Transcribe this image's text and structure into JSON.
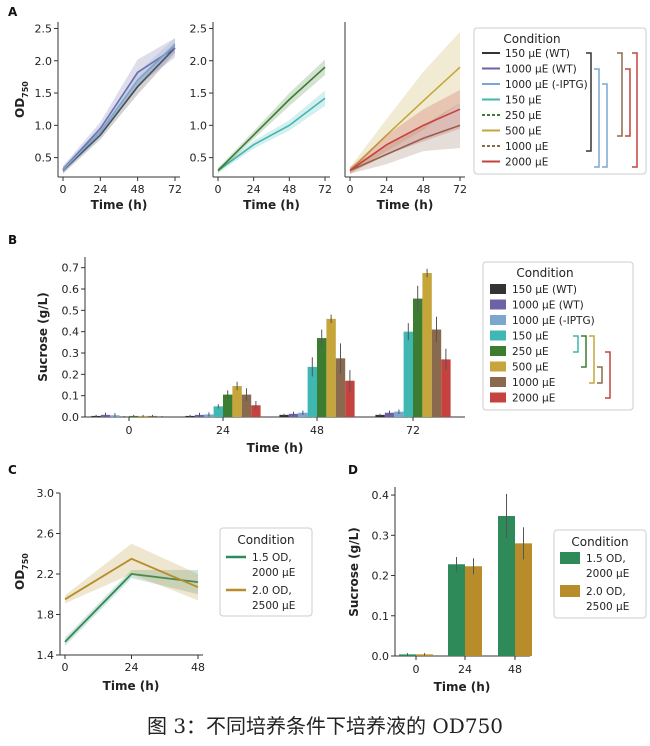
{
  "caption": "图 3：不同培养条件下培养液的 OD750",
  "colors": {
    "150 µE (WT)": "#333333",
    "1000 µE (WT)": "#6b62a8",
    "1000 µE (-IPTG)": "#7aa6cf",
    "150 µE": "#3fb7b2",
    "250 µE": "#3d7d32",
    "500 µE": "#c6a53a",
    "1000 µE": "#8a6a4e",
    "2000 µE": "#c6423f",
    "1.5 OD, 2000 µE": "#2f8a5a",
    "2.0 OD, 2500 µE": "#b88c2a"
  },
  "chart_data": [
    {
      "panel": "A",
      "type": "line",
      "xlabel": "Time (h)",
      "ylabel": "OD750",
      "x": [
        0,
        24,
        48,
        72
      ],
      "xticks": [
        0,
        24,
        48,
        72
      ],
      "yticks": [
        0.5,
        1.0,
        1.5,
        2.0,
        2.5
      ],
      "ylim": [
        0.2,
        2.6
      ],
      "legend": {
        "title": "Condition",
        "entries": [
          "150 µE (WT)",
          "1000 µE (WT)",
          "1000 µE (-IPTG)",
          "150 µE",
          "250 µE",
          "500 µE",
          "1000 µE",
          "2000 µE"
        ],
        "dashed": [
          "250 µE",
          "1000 µE"
        ]
      },
      "subplots": [
        {
          "series": [
            {
              "name": "150 µE (WT)",
              "values": [
                0.3,
                0.85,
                1.6,
                2.2
              ],
              "band": [
                0.05,
                0.07,
                0.12,
                0.08
              ]
            },
            {
              "name": "1000 µE (WT)",
              "values": [
                0.32,
                0.95,
                1.82,
                2.2
              ],
              "band": [
                0.05,
                0.1,
                0.2,
                0.15
              ]
            },
            {
              "name": "1000 µE (-IPTG)",
              "values": [
                0.31,
                0.9,
                1.7,
                2.25
              ],
              "band": [
                0.05,
                0.08,
                0.12,
                0.1
              ]
            }
          ]
        },
        {
          "yticks": [
            0.5,
            1.0,
            1.5,
            2.0,
            2.5
          ],
          "series": [
            {
              "name": "150 µE",
              "values": [
                0.3,
                0.7,
                1.0,
                1.42
              ],
              "band": [
                0.04,
                0.06,
                0.08,
                0.12
              ]
            },
            {
              "name": "250 µE",
              "values": [
                0.3,
                0.85,
                1.4,
                1.9
              ],
              "band": [
                0.04,
                0.06,
                0.1,
                0.12
              ]
            }
          ]
        },
        {
          "series": [
            {
              "name": "500 µE",
              "values": [
                0.3,
                0.85,
                1.38,
                1.9
              ],
              "band": [
                0.05,
                0.25,
                0.45,
                0.55
              ]
            },
            {
              "name": "1000 µE",
              "values": [
                0.3,
                0.55,
                0.8,
                1.0
              ],
              "band": [
                0.05,
                0.15,
                0.2,
                0.35
              ]
            },
            {
              "name": "2000 µE",
              "values": [
                0.3,
                0.7,
                1.0,
                1.25
              ],
              "band": [
                0.05,
                0.15,
                0.25,
                0.3
              ]
            }
          ]
        }
      ]
    },
    {
      "panel": "B",
      "type": "bar",
      "xlabel": "Time (h)",
      "ylabel": "Sucrose (g/L)",
      "categories": [
        "0",
        "24",
        "48",
        "72"
      ],
      "yticks": [
        0.0,
        0.1,
        0.2,
        0.3,
        0.4,
        0.5,
        0.6,
        0.7
      ],
      "ylim": [
        0,
        0.75
      ],
      "legend": {
        "title": "Condition"
      },
      "series": [
        {
          "name": "150 µE (WT)",
          "values": [
            0.005,
            0.005,
            0.01,
            0.01
          ],
          "err": [
            0.005,
            0.005,
            0.005,
            0.005
          ]
        },
        {
          "name": "1000 µE (WT)",
          "values": [
            0.01,
            0.01,
            0.015,
            0.02
          ],
          "err": [
            0.01,
            0.01,
            0.01,
            0.01
          ]
        },
        {
          "name": "1000 µE (-IPTG)",
          "values": [
            0.008,
            0.012,
            0.02,
            0.025
          ],
          "err": [
            0.01,
            0.01,
            0.01,
            0.01
          ]
        },
        {
          "name": "150 µE",
          "values": [
            0.0,
            0.05,
            0.235,
            0.4
          ],
          "err": [
            0.005,
            0.01,
            0.045,
            0.04
          ]
        },
        {
          "name": "250 µE",
          "values": [
            0.005,
            0.105,
            0.37,
            0.555
          ],
          "err": [
            0.005,
            0.02,
            0.04,
            0.06
          ]
        },
        {
          "name": "500 µE",
          "values": [
            0.005,
            0.145,
            0.46,
            0.675
          ],
          "err": [
            0.005,
            0.02,
            0.02,
            0.02
          ]
        },
        {
          "name": "1000 µE",
          "values": [
            0.005,
            0.105,
            0.275,
            0.41
          ],
          "err": [
            0.005,
            0.03,
            0.07,
            0.06
          ]
        },
        {
          "name": "2000 µE",
          "values": [
            0.0,
            0.055,
            0.17,
            0.27
          ],
          "err": [
            0.005,
            0.02,
            0.05,
            0.05
          ]
        }
      ]
    },
    {
      "panel": "C",
      "type": "line",
      "xlabel": "Time (h)",
      "ylabel": "OD750",
      "x": [
        0,
        24,
        48
      ],
      "xticks": [
        0,
        24,
        48
      ],
      "yticks": [
        1.4,
        1.8,
        2.2,
        2.6,
        3.0
      ],
      "ylim": [
        1.4,
        3.0
      ],
      "legend": {
        "title": "Condition",
        "entries": [
          "1.5 OD, 2000 µE",
          "2.0 OD, 2500 µE"
        ]
      },
      "series": [
        {
          "name": "1.5 OD, 2000 µE",
          "values": [
            1.53,
            2.2,
            2.12
          ],
          "band": [
            0.04,
            0.04,
            0.12
          ]
        },
        {
          "name": "2.0 OD, 2500 µE",
          "values": [
            1.95,
            2.35,
            2.07
          ],
          "band": [
            0.04,
            0.15,
            0.13
          ]
        }
      ]
    },
    {
      "panel": "D",
      "type": "bar",
      "xlabel": "Time (h)",
      "ylabel": "Sucrose (g/L)",
      "categories": [
        "0",
        "24",
        "48"
      ],
      "yticks": [
        0.0,
        0.1,
        0.2,
        0.3,
        0.4
      ],
      "ylim": [
        0,
        0.42
      ],
      "legend": {
        "title": "Condition",
        "entries": [
          "1.5 OD, 2000 µE",
          "2.0 OD, 2500 µE"
        ]
      },
      "series": [
        {
          "name": "1.5 OD, 2000 µE",
          "values": [
            0.004,
            0.228,
            0.348
          ],
          "err": [
            0.003,
            0.018,
            0.055
          ]
        },
        {
          "name": "2.0 OD, 2500 µE",
          "values": [
            0.004,
            0.223,
            0.28
          ],
          "err": [
            0.003,
            0.02,
            0.04
          ]
        }
      ]
    }
  ]
}
